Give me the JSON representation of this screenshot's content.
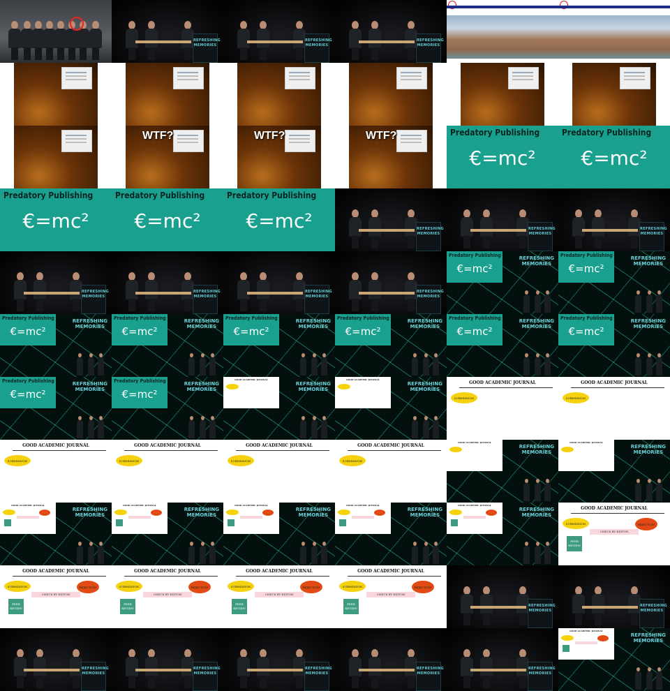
{
  "labels": {
    "wtf": "WTF?",
    "predatory_title": "Predatory Publishing",
    "equation": "€=mc²",
    "journal_title": "GOOD ACADEMIC JOURNAL",
    "submission": "SUBMISSION",
    "rejection": "REJECTION",
    "check_by_editor": "CHECK BY EDITOR",
    "peer_review": "PEER REVIEW",
    "logo_lines": [
      "REFRESHING",
      "MEMORIES"
    ]
  },
  "frames": [
    "group-photo",
    "stage",
    "stage",
    "stage",
    "web",
    "web",
    "room",
    "room",
    "room",
    "room",
    "room",
    "room",
    "room",
    "room-wtf",
    "room-wtf",
    "room-wtf",
    "teal",
    "teal",
    "teal",
    "teal",
    "teal",
    "stage",
    "stage",
    "stage",
    "stage",
    "stage",
    "stage",
    "stage",
    "net-teal",
    "net-teal",
    "net-teal",
    "net-teal",
    "net-teal",
    "net-teal",
    "net-teal",
    "net-teal",
    "net-teal",
    "net-teal",
    "net-white",
    "net-white",
    "journal-1",
    "journal-1",
    "journal-1",
    "journal-1",
    "journal-1",
    "journal-1",
    "net-white",
    "net-white",
    "net-journal",
    "net-journal",
    "net-journal",
    "net-journal",
    "net-journal",
    "journal-3",
    "journal-3",
    "journal-3",
    "journal-3",
    "journal-3",
    "stage",
    "stage",
    "stage",
    "stage",
    "stage",
    "stage",
    "stage",
    "net-journal"
  ]
}
